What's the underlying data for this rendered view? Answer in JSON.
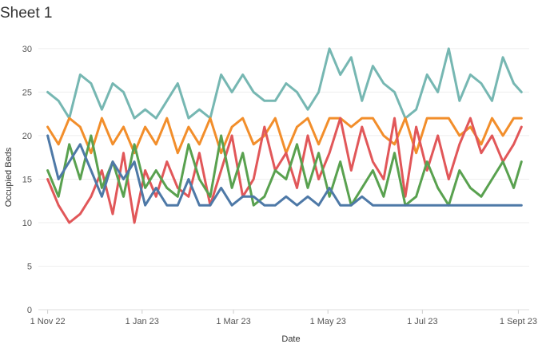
{
  "sheet": {
    "title": "Sheet 1"
  },
  "chart_data": {
    "type": "line",
    "xlabel": "Date",
    "ylabel": "Occupied Beds",
    "xlim": [
      "2022-10-26",
      "2023-09-08"
    ],
    "ylim": [
      0,
      31
    ],
    "y_ticks": [
      0,
      5,
      10,
      15,
      20,
      25,
      30
    ],
    "x_ticks": [
      {
        "date": "2022-11-01",
        "label": "1 Nov 22"
      },
      {
        "date": "2023-01-01",
        "label": "1 Jan 23"
      },
      {
        "date": "2023-03-01",
        "label": "1 Mar 23"
      },
      {
        "date": "2023-05-01",
        "label": "1 May 23"
      },
      {
        "date": "2023-07-01",
        "label": "1 Jul 23"
      },
      {
        "date": "2023-09-01",
        "label": "1 Sept 23"
      }
    ],
    "grid": "horizontal",
    "x": [
      "2022-11-01",
      "2022-11-08",
      "2022-11-15",
      "2022-11-22",
      "2022-11-29",
      "2022-12-06",
      "2022-12-13",
      "2022-12-20",
      "2022-12-27",
      "2023-01-03",
      "2023-01-10",
      "2023-01-17",
      "2023-01-24",
      "2023-01-31",
      "2023-02-07",
      "2023-02-14",
      "2023-02-21",
      "2023-02-28",
      "2023-03-07",
      "2023-03-14",
      "2023-03-21",
      "2023-03-28",
      "2023-04-04",
      "2023-04-11",
      "2023-04-18",
      "2023-04-25",
      "2023-05-02",
      "2023-05-09",
      "2023-05-16",
      "2023-05-23",
      "2023-05-30",
      "2023-06-06",
      "2023-06-13",
      "2023-06-20",
      "2023-06-27",
      "2023-07-04",
      "2023-07-11",
      "2023-07-18",
      "2023-07-25",
      "2023-08-01",
      "2023-08-08",
      "2023-08-15",
      "2023-08-22",
      "2023-08-29",
      "2023-09-03"
    ],
    "series": [
      {
        "color": "#76b7b2",
        "values": [
          25,
          24,
          22,
          27,
          26,
          23,
          26,
          25,
          22,
          23,
          22,
          24,
          26,
          22,
          23,
          22,
          27,
          25,
          27,
          25,
          24,
          24,
          26,
          25,
          23,
          25,
          30,
          27,
          29,
          24,
          28,
          26,
          25,
          22,
          23,
          27,
          25,
          30,
          24,
          27,
          26,
          24,
          29,
          26,
          25
        ]
      },
      {
        "color": "#f28e2b",
        "values": [
          21,
          19,
          22,
          21,
          18,
          22,
          19,
          21,
          18,
          21,
          19,
          22,
          18,
          21,
          19,
          22,
          18,
          21,
          22,
          19,
          20,
          22,
          18,
          21,
          22,
          19,
          22,
          22,
          21,
          22,
          22,
          20,
          19,
          22,
          18,
          22,
          22,
          22,
          20,
          21,
          19,
          22,
          20,
          22,
          22
        ]
      },
      {
        "color": "#e15759",
        "values": [
          15,
          12,
          10,
          11,
          13,
          16,
          11,
          18,
          10,
          16,
          13,
          17,
          14,
          13,
          18,
          12,
          16,
          20,
          13,
          15,
          21,
          16,
          18,
          14,
          20,
          15,
          18,
          22,
          16,
          21,
          17,
          15,
          22,
          13,
          21,
          16,
          20,
          15,
          19,
          22,
          18,
          20,
          17,
          19,
          21
        ]
      },
      {
        "color": "#59a14f",
        "values": [
          16,
          13,
          19,
          15,
          20,
          14,
          17,
          13,
          19,
          14,
          16,
          14,
          13,
          19,
          15,
          13,
          20,
          14,
          18,
          12,
          13,
          16,
          15,
          19,
          14,
          18,
          13,
          17,
          12,
          14,
          16,
          13,
          18,
          12,
          13,
          17,
          14,
          12,
          16,
          14,
          13,
          15,
          17,
          14,
          17
        ]
      },
      {
        "color": "#4e79a7",
        "values": [
          20,
          15,
          17,
          19,
          16,
          13,
          17,
          15,
          17,
          12,
          14,
          12,
          12,
          15,
          12,
          12,
          14,
          12,
          13,
          13,
          12,
          12,
          13,
          12,
          13,
          12,
          14,
          12,
          12,
          13,
          12,
          12,
          12,
          12,
          12,
          12,
          12,
          12,
          12,
          12,
          12,
          12,
          12,
          12,
          12
        ]
      }
    ]
  }
}
